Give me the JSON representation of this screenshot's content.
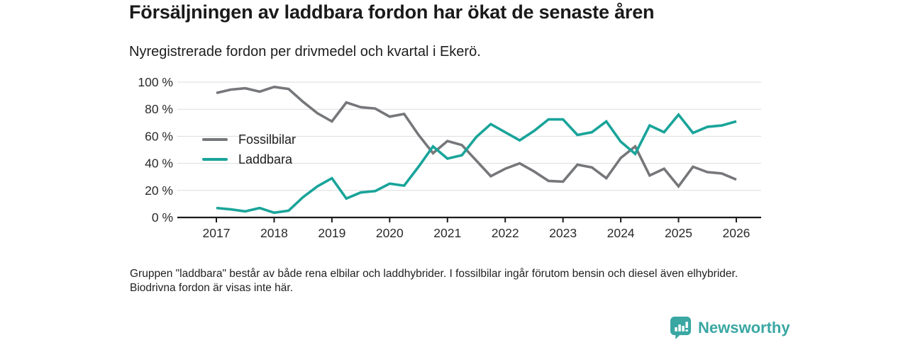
{
  "header": {
    "title": "Försäljningen av laddbara fordon har ökat de senaste åren",
    "subtitle": "Nyregistrerade fordon per drivmedel och kvartal i Ekerö."
  },
  "footnote": "Gruppen \"laddbara\" består av både rena elbilar och laddhybrider. I fossilbilar ingår förutom bensin och diesel även elhybrider. Biodrivna fordon är visas inte här.",
  "branding": {
    "logo_text": "Newsworthy",
    "logo_color": "#3aa7a3"
  },
  "chart_data": {
    "type": "line",
    "title": "Försäljningen av laddbara fordon har ökat de senaste åren",
    "subtitle": "Nyregistrerade fordon per drivmedel och kvartal i Ekerö.",
    "unit": "%",
    "ylim": [
      0,
      100
    ],
    "grid": "horizontal",
    "legend_position": "inside-left",
    "x_tick_labels": [
      "2017",
      "2018",
      "2019",
      "2020",
      "2021",
      "2022",
      "2023",
      "2024",
      "2025",
      "2026"
    ],
    "y_tick_labels": [
      "0 %",
      "20 %",
      "40 %",
      "60 %",
      "80 %",
      "100 %"
    ],
    "y_tick_values": [
      0,
      20,
      40,
      60,
      80,
      100
    ],
    "x": [
      "2017 Q1",
      "2017 Q2",
      "2017 Q3",
      "2017 Q4",
      "2018 Q1",
      "2018 Q2",
      "2018 Q3",
      "2018 Q4",
      "2019 Q1",
      "2019 Q2",
      "2019 Q3",
      "2019 Q4",
      "2020 Q1",
      "2020 Q2",
      "2020 Q3",
      "2020 Q4",
      "2021 Q1",
      "2021 Q2",
      "2021 Q3",
      "2021 Q4",
      "2022 Q1",
      "2022 Q2",
      "2022 Q3",
      "2022 Q4",
      "2023 Q1",
      "2023 Q2",
      "2023 Q3",
      "2023 Q4",
      "2024 Q1",
      "2024 Q2",
      "2024 Q3",
      "2024 Q4",
      "2025 Q1",
      "2025 Q2",
      "2025 Q3",
      "2025 Q4",
      "2026 Q1"
    ],
    "series": [
      {
        "name": "Fossilbilar",
        "color": "#76777a",
        "values": [
          92,
          94.5,
          95.5,
          93,
          96.5,
          95,
          85.5,
          77,
          71,
          85,
          81.5,
          80.5,
          74.5,
          76.5,
          61,
          47.5,
          56.5,
          53.5,
          42,
          30.5,
          36,
          40,
          34,
          27,
          26.5,
          39,
          37,
          29,
          44,
          52.5,
          31,
          36,
          23,
          37.5,
          33.5,
          32.5,
          28
        ]
      },
      {
        "name": "Laddbara",
        "color": "#19a49a",
        "values": [
          7,
          6,
          4.5,
          7,
          3.5,
          5,
          15,
          23,
          29,
          14,
          18.5,
          19.5,
          25,
          23.5,
          37.5,
          52.5,
          43.5,
          46,
          59.5,
          69,
          63,
          57,
          64,
          72.5,
          72.5,
          61,
          63,
          71,
          56,
          47,
          68,
          63,
          76,
          62.5,
          67,
          68,
          71
        ]
      }
    ]
  }
}
